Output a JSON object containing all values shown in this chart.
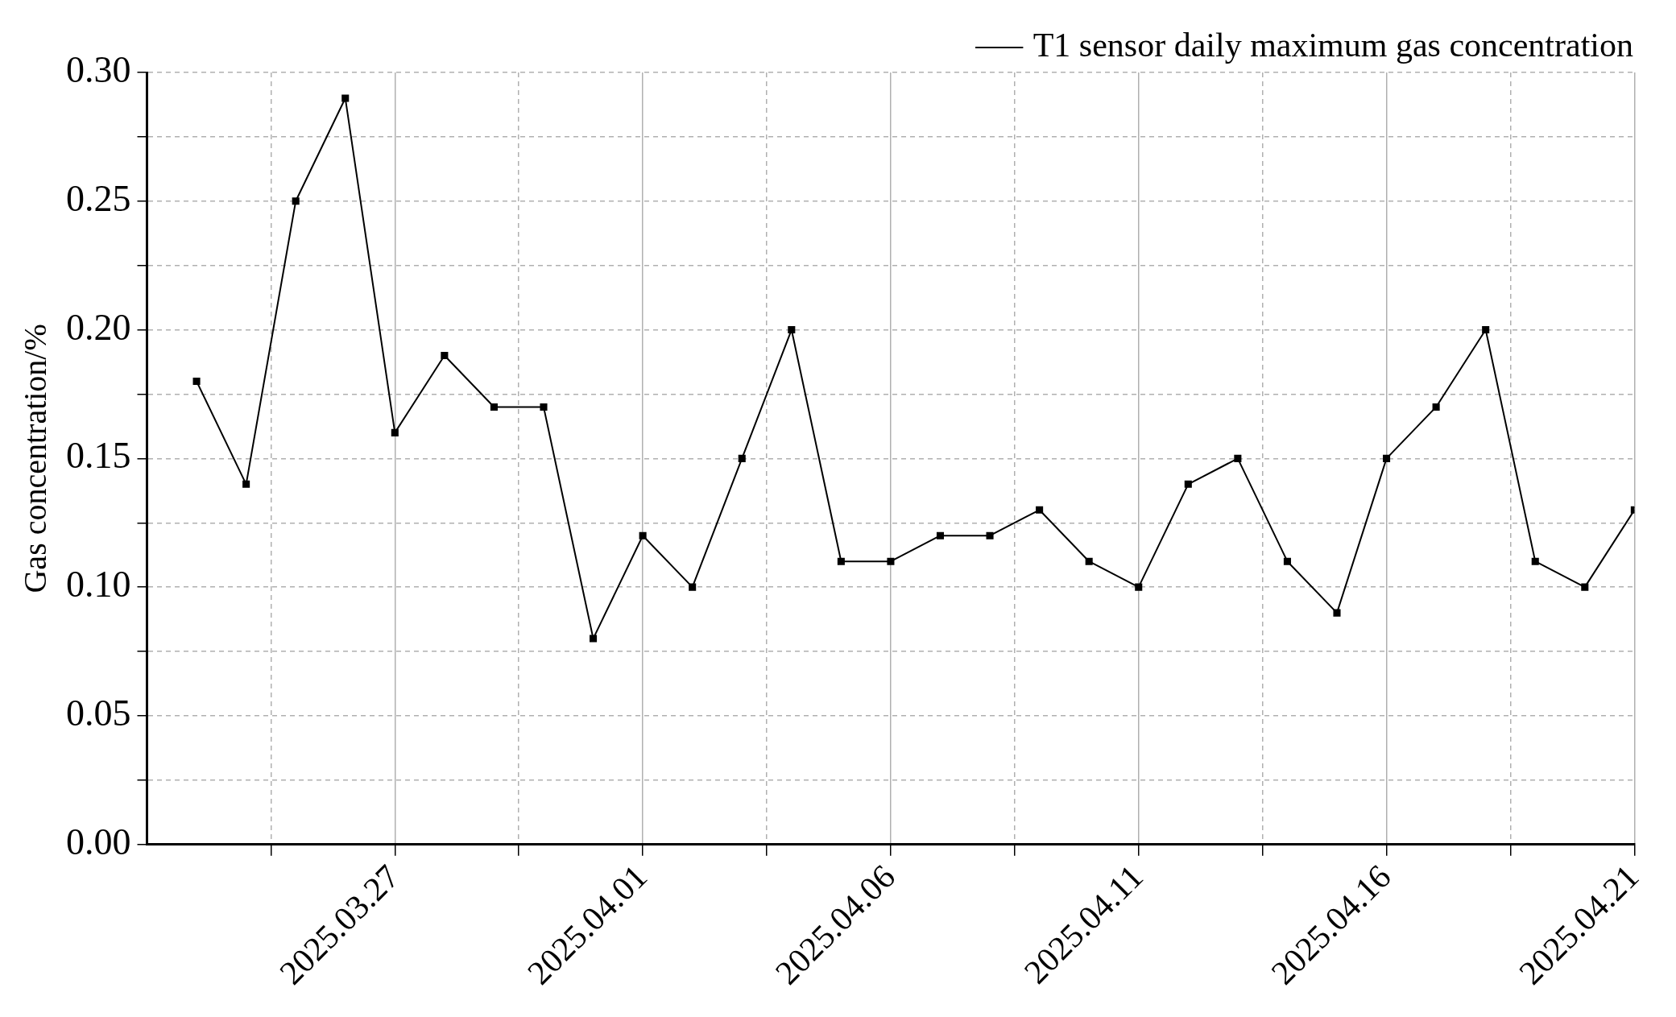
{
  "chart_data": {
    "type": "line",
    "ylabel": "Gas concentration/%",
    "x": [
      "2025-03-23",
      "2025-03-24",
      "2025-03-25",
      "2025-03-26",
      "2025-03-27",
      "2025-03-28",
      "2025-03-29",
      "2025-03-30",
      "2025-03-31",
      "2025-04-01",
      "2025-04-02",
      "2025-04-03",
      "2025-04-04",
      "2025-04-05",
      "2025-04-06",
      "2025-04-07",
      "2025-04-08",
      "2025-04-09",
      "2025-04-10",
      "2025-04-11",
      "2025-04-12",
      "2025-04-13",
      "2025-04-14",
      "2025-04-15",
      "2025-04-16",
      "2025-04-17",
      "2025-04-18",
      "2025-04-19",
      "2025-04-20",
      "2025-04-21"
    ],
    "series": [
      {
        "name": "T1 sensor daily maximum gas concentration",
        "color": "#000000",
        "values": [
          0.18,
          0.14,
          0.25,
          0.29,
          0.16,
          0.19,
          0.17,
          0.17,
          0.08,
          0.12,
          0.1,
          0.15,
          0.2,
          0.11,
          0.11,
          0.12,
          0.12,
          0.13,
          0.11,
          0.1,
          0.14,
          0.15,
          0.11,
          0.09,
          0.15,
          0.17,
          0.2,
          0.11,
          0.1,
          0.13
        ]
      }
    ],
    "xlim": [
      "2025-03-22",
      "2025-04-21"
    ],
    "xticks": [
      {
        "value": "2025-03-24T12:00",
        "label": null
      },
      {
        "value": "2025-03-27",
        "label": "2025.03.27"
      },
      {
        "value": "2025-03-29T12:00",
        "label": null
      },
      {
        "value": "2025-04-01",
        "label": "2025.04.01"
      },
      {
        "value": "2025-04-03T12:00",
        "label": null
      },
      {
        "value": "2025-04-06",
        "label": "2025.04.06"
      },
      {
        "value": "2025-04-08T12:00",
        "label": null
      },
      {
        "value": "2025-04-11",
        "label": "2025.04.11"
      },
      {
        "value": "2025-04-13T12:00",
        "label": null
      },
      {
        "value": "2025-04-16",
        "label": "2025.04.16"
      },
      {
        "value": "2025-04-18T12:00",
        "label": null
      },
      {
        "value": "2025-04-21",
        "label": "2025.04.21"
      }
    ],
    "ylim": [
      0,
      0.3
    ],
    "yticks": [
      {
        "value": 0,
        "label": "0.00"
      },
      {
        "value": 0.025,
        "label": null
      },
      {
        "value": 0.05,
        "label": "0.05"
      },
      {
        "value": 0.075,
        "label": null
      },
      {
        "value": 0.1,
        "label": "0.10"
      },
      {
        "value": 0.125,
        "label": null
      },
      {
        "value": 0.15,
        "label": "0.15"
      },
      {
        "value": 0.175,
        "label": null
      },
      {
        "value": 0.2,
        "label": "0.20"
      },
      {
        "value": 0.225,
        "label": null
      },
      {
        "value": 0.25,
        "label": "0.25"
      },
      {
        "value": 0.275,
        "label": null
      },
      {
        "value": 0.3,
        "label": "0.30"
      }
    ],
    "grid": true,
    "legend": "top right",
    "marker": "square",
    "line_style": "solid"
  }
}
